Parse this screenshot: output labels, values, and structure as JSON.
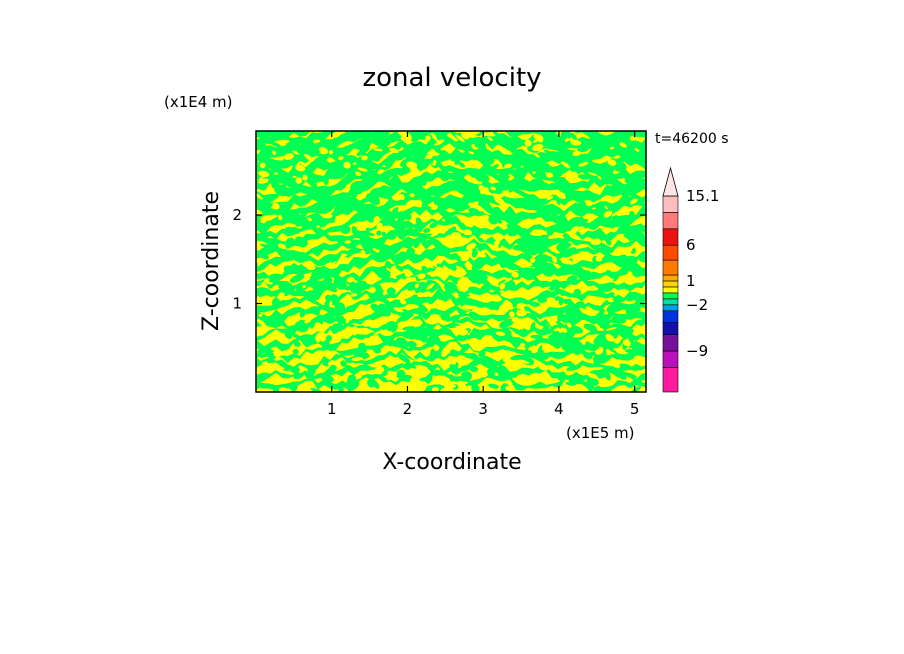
{
  "chart_data": {
    "type": "heatmap",
    "title": "zonal velocity",
    "xlabel": "X-coordinate",
    "ylabel": "Z-coordinate",
    "x_unit": "(x1E5 m)",
    "y_unit": "(x1E4 m)",
    "time_label": "t=46200 s",
    "xlim": [
      0,
      5.15
    ],
    "ylim": [
      0,
      2.95
    ],
    "x_ticks": [
      1,
      2,
      3,
      4,
      5
    ],
    "y_ticks": [
      1,
      2
    ],
    "x_tick_labels": [
      "1",
      "2",
      "3",
      "4",
      "5"
    ],
    "y_tick_labels": [
      "1",
      "2"
    ],
    "field_colors": {
      "positive_small": "#ffff00",
      "negative_small": "#00ff55"
    },
    "colorbar": {
      "extend_max": true,
      "labels": [
        {
          "text": "15.1",
          "value": 15.1
        },
        {
          "text": "6",
          "value": 6
        },
        {
          "text": "1",
          "value": 1
        },
        {
          "text": "−2",
          "value": -2
        },
        {
          "text": "−9",
          "value": -9
        }
      ],
      "bands": [
        {
          "color": "#ff1aa0",
          "weight": 3.3
        },
        {
          "color": "#bb11bb",
          "weight": 2.2
        },
        {
          "color": "#771199",
          "weight": 2.2
        },
        {
          "color": "#1111aa",
          "weight": 1.6
        },
        {
          "color": "#0033dd",
          "weight": 1.6
        },
        {
          "color": "#00a0f0",
          "weight": 0.8
        },
        {
          "color": "#00e0a0",
          "weight": 0.8
        },
        {
          "color": "#00ff55",
          "weight": 0.8
        },
        {
          "color": "#ffff00",
          "weight": 0.8
        },
        {
          "color": "#ffd400",
          "weight": 0.8
        },
        {
          "color": "#ffaa00",
          "weight": 0.8
        },
        {
          "color": "#ff7a00",
          "weight": 2.0
        },
        {
          "color": "#ff4a00",
          "weight": 2.0
        },
        {
          "color": "#ee1111",
          "weight": 2.2
        },
        {
          "color": "#ff7a7a",
          "weight": 2.2
        },
        {
          "color": "#ffbdbd",
          "weight": 2.2
        }
      ],
      "extension_color": "#ffe6e6"
    }
  }
}
